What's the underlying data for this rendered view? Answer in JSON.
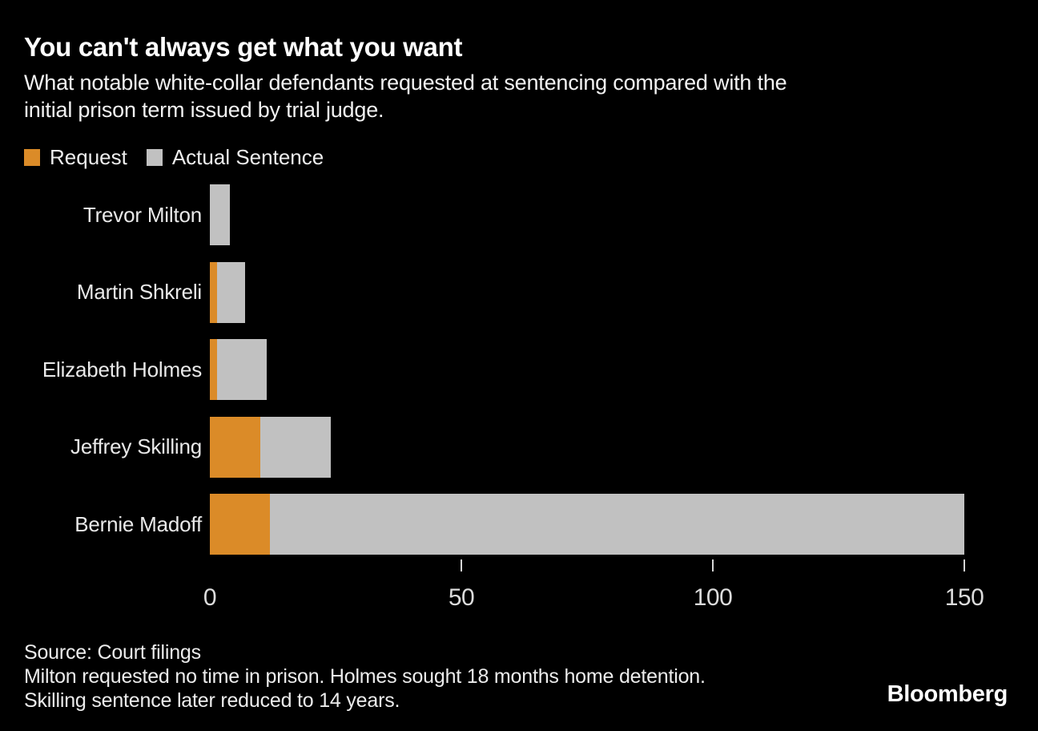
{
  "colors": {
    "background": "#000000",
    "request": "#DB8B28",
    "actual": "#C1C1C1",
    "tick": "#D6D6D6"
  },
  "header": {
    "title": "You can't always get what you want",
    "subtitle_lines": [
      "What notable white-collar defendants requested at sentencing compared with the",
      "initial prison term issued by trial judge."
    ]
  },
  "legend": [
    {
      "label": "Request",
      "color": "#DB8B28"
    },
    {
      "label": "Actual Sentence",
      "color": "#C1C1C1"
    }
  ],
  "chart_data": {
    "type": "bar",
    "orientation": "horizontal",
    "title": "You can't always get what you want",
    "subtitle": "What notable white-collar defendants requested at sentencing compared with the initial prison term issued by trial judge.",
    "unit": "years",
    "categories": [
      "Trevor Milton",
      "Martin Shkreli",
      "Elizabeth Holmes",
      "Jeffrey Skilling",
      "Bernie Madoff"
    ],
    "series": [
      {
        "name": "Request",
        "color": "#DB8B28",
        "values": [
          0,
          1.5,
          1.5,
          10,
          12
        ]
      },
      {
        "name": "Actual Sentence",
        "color": "#C1C1C1",
        "values": [
          4,
          7,
          11.25,
          24,
          150
        ]
      }
    ],
    "overlay": "Request bars are drawn from zero on top of Actual Sentence bars",
    "xlim": [
      0,
      150
    ],
    "xticks": [
      0,
      50,
      100,
      150
    ],
    "grid": false,
    "legend_position": "top-left"
  },
  "footer": {
    "source": "Source: Court filings",
    "note_line1": "Milton requested no time in prison. Holmes sought 18 months home detention.",
    "note_line2": "Skilling sentence later reduced to 14 years.",
    "brand": "Bloomberg"
  }
}
